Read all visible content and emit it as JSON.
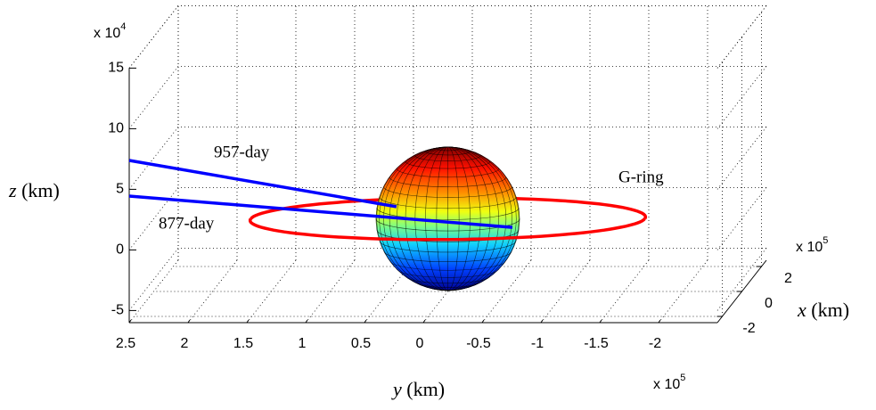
{
  "chart_data": {
    "type": "line3d",
    "xlabel": {
      "var": "x",
      "unit": "(km)"
    },
    "ylabel": {
      "var": "y",
      "unit": "(km)"
    },
    "zlabel": {
      "var": "z",
      "unit": "(km)"
    },
    "x_exponent": {
      "base": "x 10",
      "power": "5"
    },
    "y_exponent": {
      "base": "x 10",
      "power": "5"
    },
    "z_exponent": {
      "base": "x 10",
      "power": "4"
    },
    "xlim": [
      -250000,
      250000
    ],
    "ylim": [
      -250000,
      250000
    ],
    "zlim": [
      -60000,
      150000
    ],
    "xticks": [
      {
        "value": -200000,
        "label": "-2"
      },
      0,
      {
        "value": 200000,
        "label": "2"
      }
    ],
    "yticks": [
      {
        "value": 250000,
        "label": "2.5"
      },
      {
        "value": 200000,
        "label": "2"
      },
      {
        "value": 150000,
        "label": "1.5"
      },
      {
        "value": 100000,
        "label": "1"
      },
      {
        "value": 50000,
        "label": "0.5"
      },
      0,
      {
        "value": -50000,
        "label": "-0.5"
      },
      {
        "value": -100000,
        "label": "-1"
      },
      {
        "value": -150000,
        "label": "-1.5"
      },
      {
        "value": -200000,
        "label": "-2"
      }
    ],
    "zticks": [
      {
        "value": -50000,
        "label": "-5"
      },
      0,
      {
        "value": 50000,
        "label": "5"
      },
      {
        "value": 100000,
        "label": "10"
      },
      {
        "value": 150000,
        "label": "15"
      }
    ],
    "grid": true,
    "sphere": {
      "radius": 60268,
      "colormap": "jet"
    },
    "series": [
      {
        "name": "957-day",
        "kind": "line",
        "color": "#0000ff",
        "x": [
          -250000,
          0
        ],
        "y": [
          250000,
          43600
        ],
        "z": [
          73800,
          9900
        ]
      },
      {
        "name": "877-day",
        "kind": "line",
        "color": "#0000ff",
        "x": [
          -250000,
          0
        ],
        "y": [
          250000,
          -54900
        ],
        "z": [
          44400,
          -7100
        ]
      },
      {
        "name": "G-ring",
        "kind": "ring",
        "color": "#ff0000",
        "radius": 167500
      }
    ]
  }
}
